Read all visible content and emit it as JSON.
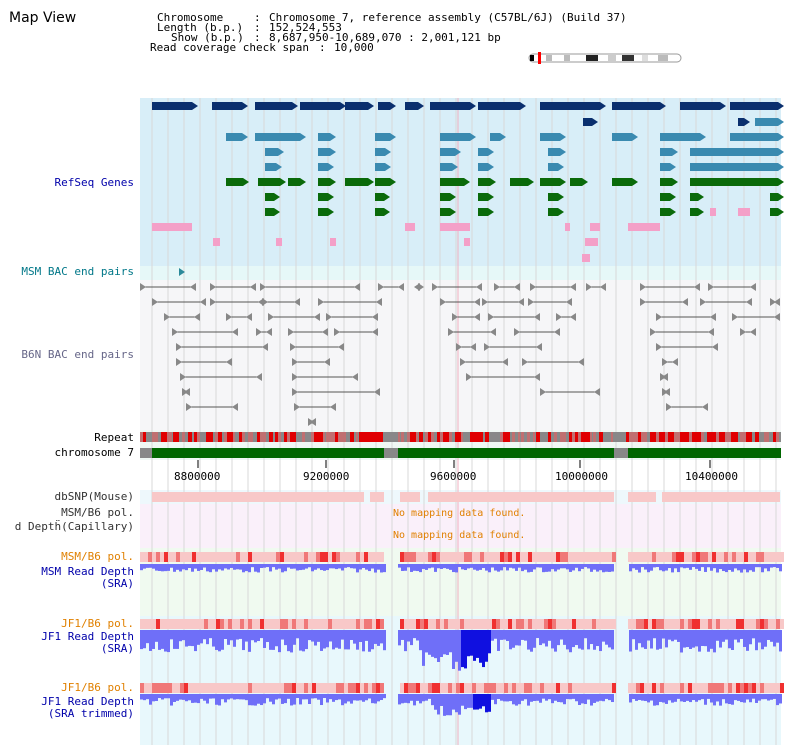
{
  "title": "Map View",
  "header": {
    "chromosome_key": "Chromosome",
    "chromosome_value": "Chromosome 7, reference assembly (C57BL/6J) (Build 37)",
    "length_key": "Length (b.p.)",
    "length_value": "152,524,553",
    "show_key": "Show (b.p.)",
    "show_value": "8,687,950-10,689,070 : 2,001,121 bp",
    "coverage_key": "Read coverage check span",
    "coverage_value": "10,000"
  },
  "tracks": {
    "refseq": "RefSeq Genes",
    "msm_bac": "MSM BAC end pairs",
    "b6n_bac": "B6N BAC end pairs",
    "repeat": "Repeat",
    "chromosome": "chromosome 7",
    "dbsnp": "dbSNP(Mouse)",
    "msm_b6_pol_1": "MSM/B6 pol.",
    "capillary": "d Deptḧ(Capillary)",
    "msm_b6_pol_2": "MSM/B6 pol.",
    "msm_read_depth": "MSM Read Depth\n(SRA)",
    "jf1_b6_pol_1": "JF1/B6 pol.",
    "jf1_read_depth": "JF1 Read Depth\n(SRA)",
    "jf1_b6_pol_2": "JF1/B6 pol.",
    "jf1_read_depth_trimmed": "JF1 Read Depth\n(SRA trimmed)"
  },
  "messages": {
    "no_mapping_1": "No mapping data found.",
    "no_mapping_2": "No mapping data found."
  },
  "axis": {
    "ticks": [
      "8800000",
      "9200000",
      "9600000",
      "10000000",
      "10400000"
    ]
  },
  "colors": {
    "gene_dark_navy": "#0a2f6e",
    "gene_teal": "#3a8ab0",
    "gene_green": "#0a6a0a",
    "gene_pink": "#f4a0c8",
    "refseq_bg": "#d8eef8",
    "repeat_red": "#e00000",
    "chromosome_green": "#006600",
    "dbsnp_pink": "#f8c8c8",
    "depth_blue": "#6f6ff8",
    "depth_dark_blue": "#1010e0",
    "pol_red": "#f03030",
    "label_blue": "#0000aa",
    "label_orange": "#e08000",
    "label_teal": "#007788"
  }
}
